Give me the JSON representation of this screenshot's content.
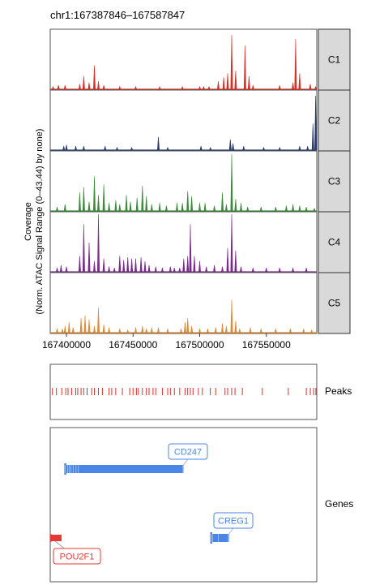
{
  "region_title": "chr1:167387846–167587847",
  "colors": {
    "C1": "#d73027",
    "C2": "#283a6e",
    "C3": "#3a8a3a",
    "C4": "#7b2a8c",
    "C5": "#e08a35",
    "peak": "#d9302b",
    "gene": "#4a86e8",
    "gene_minus": "#e53935",
    "strip_fill": "#d9d9d9"
  },
  "chart_data": [
    {
      "type": "area",
      "name": "coverage",
      "ylabel_lines": [
        "Coverage",
        "(Norm. ATAC Signal Range (0–43.44) by none)"
      ],
      "xlim": [
        167387846,
        167587847
      ],
      "ylim": [
        0,
        43.44
      ],
      "x_ticks": [
        167400000,
        167450000,
        167500000,
        167550000
      ],
      "x_tick_labels": [
        "167400000",
        "167450000",
        "167500000",
        "167550000"
      ],
      "series": [
        {
          "name": "C1",
          "peaks": [
            [
              167390000,
              2
            ],
            [
              167394000,
              3
            ],
            [
              167399000,
              3
            ],
            [
              167410000,
              4
            ],
            [
              167413000,
              10
            ],
            [
              167417000,
              5
            ],
            [
              167421000,
              18
            ],
            [
              167424000,
              6
            ],
            [
              167428000,
              3
            ],
            [
              167440000,
              2
            ],
            [
              167452000,
              2
            ],
            [
              167470000,
              2
            ],
            [
              167487000,
              2
            ],
            [
              167500000,
              2
            ],
            [
              167503000,
              2
            ],
            [
              167507000,
              2
            ],
            [
              167514000,
              6
            ],
            [
              167518000,
              9
            ],
            [
              167521000,
              12
            ],
            [
              167524000,
              41
            ],
            [
              167527000,
              14
            ],
            [
              167534000,
              33
            ],
            [
              167537000,
              10
            ],
            [
              167540000,
              3
            ],
            [
              167560000,
              3
            ],
            [
              167570000,
              5
            ],
            [
              167572000,
              38
            ],
            [
              167575000,
              12
            ],
            [
              167583000,
              4
            ],
            [
              167587000,
              2
            ]
          ]
        },
        {
          "name": "C2",
          "peaks": [
            [
              167398000,
              3
            ],
            [
              167400000,
              4
            ],
            [
              167407000,
              3
            ],
            [
              167413000,
              3
            ],
            [
              167429000,
              3
            ],
            [
              167438000,
              2
            ],
            [
              167449000,
              2
            ],
            [
              167469000,
              10
            ],
            [
              167476000,
              2
            ],
            [
              167501000,
              3
            ],
            [
              167508000,
              2
            ],
            [
              167523000,
              8
            ],
            [
              167525000,
              5
            ],
            [
              167533000,
              3
            ],
            [
              167548000,
              2
            ],
            [
              167560000,
              2
            ],
            [
              167575000,
              3
            ],
            [
              167581000,
              3
            ],
            [
              167585000,
              20
            ],
            [
              167587000,
              41
            ]
          ]
        },
        {
          "name": "C3",
          "peaks": [
            [
              167393000,
              3
            ],
            [
              167399000,
              5
            ],
            [
              167410000,
              14
            ],
            [
              167413000,
              18
            ],
            [
              167417000,
              7
            ],
            [
              167421000,
              26
            ],
            [
              167424000,
              12
            ],
            [
              167428000,
              20
            ],
            [
              167432000,
              6
            ],
            [
              167437000,
              8
            ],
            [
              167440000,
              5
            ],
            [
              167445000,
              12
            ],
            [
              167448000,
              7
            ],
            [
              167453000,
              10
            ],
            [
              167457000,
              19
            ],
            [
              167460000,
              11
            ],
            [
              167464000,
              5
            ],
            [
              167470000,
              6
            ],
            [
              167475000,
              4
            ],
            [
              167483000,
              6
            ],
            [
              167487000,
              6
            ],
            [
              167491000,
              15
            ],
            [
              167494000,
              11
            ],
            [
              167500000,
              6
            ],
            [
              167504000,
              6
            ],
            [
              167511000,
              4
            ],
            [
              167517000,
              14
            ],
            [
              167520000,
              5
            ],
            [
              167524000,
              43
            ],
            [
              167527000,
              9
            ],
            [
              167531000,
              6
            ],
            [
              167536000,
              3
            ],
            [
              167546000,
              3
            ],
            [
              167557000,
              3
            ],
            [
              167565000,
              4
            ],
            [
              167570000,
              5
            ],
            [
              167575000,
              4
            ],
            [
              167580000,
              3
            ],
            [
              167586000,
              2
            ]
          ]
        },
        {
          "name": "C4",
          "peaks": [
            [
              167393000,
              3
            ],
            [
              167396000,
              5
            ],
            [
              167400000,
              4
            ],
            [
              167410000,
              12
            ],
            [
              167413000,
              36
            ],
            [
              167417000,
              22
            ],
            [
              167421000,
              8
            ],
            [
              167424000,
              45
            ],
            [
              167428000,
              10
            ],
            [
              167432000,
              4
            ],
            [
              167436000,
              3
            ],
            [
              167440000,
              12
            ],
            [
              167443000,
              9
            ],
            [
              167446000,
              11
            ],
            [
              167449000,
              10
            ],
            [
              167452000,
              10
            ],
            [
              167456000,
              11
            ],
            [
              167459000,
              8
            ],
            [
              167462000,
              5
            ],
            [
              167467000,
              4
            ],
            [
              167472000,
              3
            ],
            [
              167478000,
              4
            ],
            [
              167481000,
              3
            ],
            [
              167485000,
              3
            ],
            [
              167488000,
              10
            ],
            [
              167491000,
              12
            ],
            [
              167493000,
              36
            ],
            [
              167496000,
              12
            ],
            [
              167500000,
              8
            ],
            [
              167505000,
              4
            ],
            [
              167511000,
              5
            ],
            [
              167517000,
              4
            ],
            [
              167521000,
              18
            ],
            [
              167524000,
              46
            ],
            [
              167527000,
              16
            ],
            [
              167531000,
              4
            ],
            [
              167540000,
              3
            ],
            [
              167550000,
              3
            ],
            [
              167560000,
              3
            ],
            [
              167570000,
              3
            ],
            [
              167580000,
              3
            ]
          ]
        },
        {
          "name": "C5",
          "peaks": [
            [
              167393000,
              3
            ],
            [
              167397000,
              3
            ],
            [
              167399000,
              5
            ],
            [
              167402000,
              8
            ],
            [
              167405000,
              4
            ],
            [
              167411000,
              11
            ],
            [
              167414000,
              13
            ],
            [
              167417000,
              10
            ],
            [
              167421000,
              5
            ],
            [
              167424000,
              19
            ],
            [
              167428000,
              6
            ],
            [
              167432000,
              4
            ],
            [
              167440000,
              3
            ],
            [
              167446000,
              2
            ],
            [
              167452000,
              4
            ],
            [
              167457000,
              5
            ],
            [
              167460000,
              3
            ],
            [
              167464000,
              4
            ],
            [
              167469000,
              4
            ],
            [
              167476000,
              3
            ],
            [
              167486000,
              3
            ],
            [
              167489000,
              8
            ],
            [
              167491000,
              11
            ],
            [
              167494000,
              5
            ],
            [
              167500000,
              3
            ],
            [
              167506000,
              3
            ],
            [
              167512000,
              4
            ],
            [
              167517000,
              7
            ],
            [
              167520000,
              5
            ],
            [
              167524000,
              25
            ],
            [
              167527000,
              9
            ],
            [
              167530000,
              3
            ],
            [
              167538000,
              4
            ],
            [
              167546000,
              3
            ],
            [
              167557000,
              3
            ],
            [
              167568000,
              3
            ],
            [
              167578000,
              3
            ],
            [
              167584000,
              2
            ]
          ]
        }
      ]
    },
    {
      "type": "table",
      "name": "peaks",
      "label": "Peaks",
      "positions": [
        167389500,
        167392500,
        167396500,
        167399500,
        167401200,
        167404000,
        167407000,
        167408500,
        167411000,
        167413000,
        167415500,
        167419000,
        167421000,
        167424000,
        167427000,
        167432000,
        167434000,
        167437000,
        167442000,
        167447500,
        167450000,
        167452500,
        167454000,
        167457000,
        167460000,
        167462000,
        167465000,
        167467000,
        167472000,
        167476000,
        167478000,
        167481000,
        167485000,
        167489000,
        167491000,
        167493000,
        167495000,
        167499000,
        167502000,
        167508000,
        167512000,
        167519000,
        167521000,
        167524000,
        167526500,
        167532000,
        167547000,
        167566500,
        167580000,
        167583000,
        167585500,
        167587200
      ]
    },
    {
      "type": "table",
      "name": "genes",
      "label": "Genes",
      "genes": [
        {
          "name": "CD247",
          "strand": "-",
          "start": 167399000,
          "end": 167487900,
          "row": 0,
          "exons": [
            167399000,
            167400800,
            167402000,
            167403500,
            167405000,
            167407200,
            167409000,
            167487500
          ]
        },
        {
          "name": "CREG1",
          "strand": "-",
          "start": 167508500,
          "end": 167522000,
          "row": 1,
          "exons": [
            167508500,
            167509800,
            167514000,
            167521500
          ]
        },
        {
          "name": "POU2F1",
          "strand": "+",
          "start": 167387846,
          "end": 167396500,
          "row": 2,
          "exons": [
            167387846,
            167390000,
            167392500
          ]
        }
      ]
    }
  ]
}
